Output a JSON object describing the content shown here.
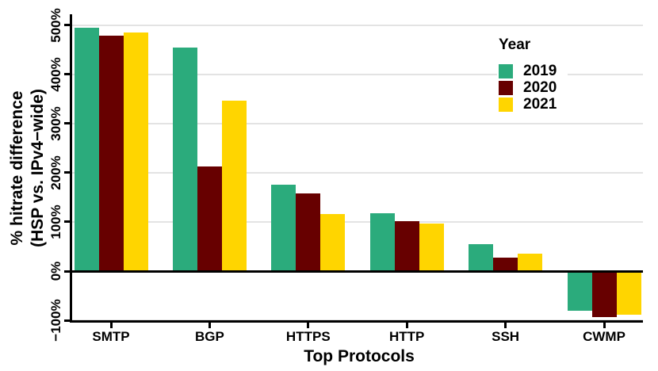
{
  "chart_data": {
    "type": "bar",
    "title": "",
    "xlabel": "Top Protocols",
    "ylabel_line1": "% hitrate difference",
    "ylabel_line2": "(HSP vs. IPv4−wide)",
    "categories": [
      "SMTP",
      "BGP",
      "HTTPS",
      "HTTP",
      "SSH",
      "CWMP"
    ],
    "series": [
      {
        "name": "2019",
        "color": "#2bab7c",
        "values": [
          495,
          455,
          176,
          117,
          55,
          -81
        ]
      },
      {
        "name": "2020",
        "color": "#670000",
        "values": [
          478,
          213,
          158,
          102,
          28,
          -94
        ]
      },
      {
        "name": "2021",
        "color": "#ffd500",
        "values": [
          485,
          346,
          116,
          97,
          36,
          -88
        ]
      }
    ],
    "y_ticks": [
      {
        "value": 500,
        "label": "500%"
      },
      {
        "value": 400,
        "label": "400%"
      },
      {
        "value": 300,
        "label": "300%"
      },
      {
        "value": 200,
        "label": "200%"
      },
      {
        "value": 100,
        "label": "100%"
      },
      {
        "value": 0,
        "label": "0%"
      },
      {
        "value": -100,
        "label": "−100%"
      }
    ],
    "ylim": [
      -103,
      522
    ],
    "legend_title": "Year",
    "legend_position": "top-right-inside",
    "grid": "horizontal",
    "colors": {
      "gridline": "#e3e3e3",
      "axis": "#000000",
      "background": "#ffffff"
    }
  }
}
